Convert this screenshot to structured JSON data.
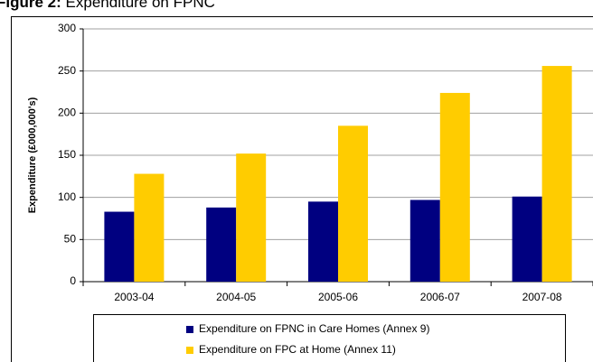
{
  "chart_data": {
    "type": "bar",
    "title_label": "Figure 2:",
    "title": "Expenditure on FPNC",
    "y_label": "Expenditure (£000,000's)",
    "categories": [
      "2003-04",
      "2004-05",
      "2005-06",
      "2006-07",
      "2007-08"
    ],
    "series": [
      {
        "name": "Expenditure on FPNC in Care Homes (Annex 9)",
        "color": "#000080",
        "values": [
          83,
          88,
          95,
          97,
          101
        ]
      },
      {
        "name": "Expenditure on FPC at Home (Annex 11)",
        "color": "#ffcc00",
        "values": [
          128,
          152,
          185,
          224,
          256
        ]
      }
    ],
    "ylim": [
      0,
      300
    ],
    "yticks": [
      0,
      50,
      100,
      150,
      200,
      250,
      300
    ],
    "grid": true
  }
}
